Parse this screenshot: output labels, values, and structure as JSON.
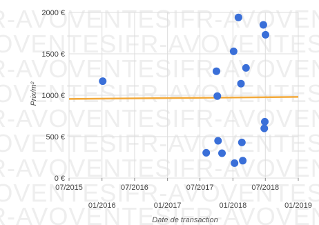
{
  "watermark": "FR-AVOVENTESIFR-AVOVENTESIFR-AVOVENTESI",
  "chart_data": {
    "type": "scatter",
    "title": "",
    "xlabel": "Date de transaction",
    "ylabel": "Prix/m²",
    "xlim": [
      "2015-07-01",
      "2019-01-01"
    ],
    "ylim": [
      0,
      2000
    ],
    "grid": true,
    "yticks": [
      {
        "value": 0,
        "label": "0 €"
      },
      {
        "value": 500,
        "label": "500 €"
      },
      {
        "value": 1000,
        "label": "1000 €"
      },
      {
        "value": 1500,
        "label": "1500 €"
      },
      {
        "value": 2000,
        "label": "2000 €"
      }
    ],
    "xticks": [
      {
        "value": "2015-07-01",
        "label": "07/2015",
        "row": 1
      },
      {
        "value": "2016-01-01",
        "label": "01/2016",
        "row": 2
      },
      {
        "value": "2016-07-01",
        "label": "07/2016",
        "row": 1
      },
      {
        "value": "2017-01-01",
        "label": "01/2017",
        "row": 2
      },
      {
        "value": "2017-07-01",
        "label": "07/2017",
        "row": 1
      },
      {
        "value": "2018-01-01",
        "label": "01/2018",
        "row": 2
      },
      {
        "value": "2018-07-01",
        "label": "07/2018",
        "row": 1
      },
      {
        "value": "2019-01-01",
        "label": "01/2019",
        "row": 2
      }
    ],
    "points": [
      {
        "x": "2016-01-05",
        "y": 1170
      },
      {
        "x": "2017-08-05",
        "y": 305
      },
      {
        "x": "2017-10-01",
        "y": 1290
      },
      {
        "x": "2017-10-06",
        "y": 990
      },
      {
        "x": "2017-10-10",
        "y": 450
      },
      {
        "x": "2017-11-01",
        "y": 300
      },
      {
        "x": "2018-01-05",
        "y": 1530
      },
      {
        "x": "2018-01-10",
        "y": 180
      },
      {
        "x": "2018-02-01",
        "y": 1940
      },
      {
        "x": "2018-02-15",
        "y": 1140
      },
      {
        "x": "2018-02-20",
        "y": 430
      },
      {
        "x": "2018-02-25",
        "y": 210
      },
      {
        "x": "2018-03-15",
        "y": 1330
      },
      {
        "x": "2018-06-20",
        "y": 1850
      },
      {
        "x": "2018-06-25",
        "y": 600
      },
      {
        "x": "2018-06-28",
        "y": 680
      },
      {
        "x": "2018-07-02",
        "y": 1730
      }
    ],
    "trend": {
      "start": {
        "x": "2015-07-01",
        "y": 955
      },
      "end": {
        "x": "2019-01-01",
        "y": 980
      }
    },
    "colors": {
      "points": "#3a6fd8",
      "trend": "#f2a93b"
    }
  }
}
